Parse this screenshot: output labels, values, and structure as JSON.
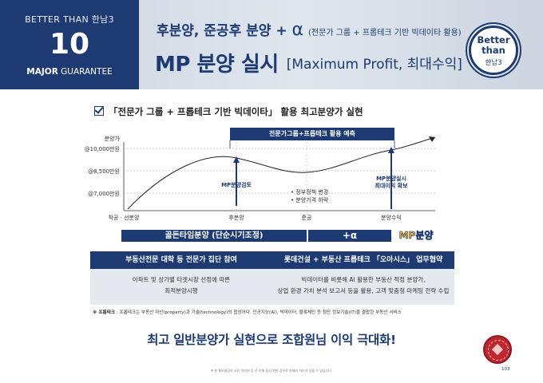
{
  "header": {
    "brand_line1": "BETTER THAN 한남3",
    "brand_number": "10",
    "brand_line3_bold": "MAJOR",
    "brand_line3_rest": " GUARANTEE",
    "subtitle": "후분양, 준공후 분양 + ",
    "subtitle_alpha": "α",
    "subtitle_note": "(전문가 그룹 + 프롭테크 기반 빅데이타 활용)",
    "title": "MP 분양 실시",
    "title_bracket": "[Maximum Profit, 최대수익]",
    "badge_line1": "Better",
    "badge_line2": "than",
    "badge_line3": "한남3"
  },
  "section_title": "「전문가 그룹 + 프롭테크 기반 빅데이타」 활용 최고분양가 실현",
  "chart_data": {
    "type": "line",
    "y_axis_label": "분양가",
    "y_ticks": [
      "@10,000만원",
      "@8,500만원",
      "@7,000만원"
    ],
    "x_ticks": [
      "착공 · 선분양",
      "후분양",
      "준공",
      "분양수익"
    ],
    "banner": "전문가그룹+프롭테크 활용 예측",
    "callouts": [
      "MP분양검토",
      "MP분양실시\n최대이익 확보"
    ],
    "notes": [
      "• 정부정책 변경",
      "• 분양가격 하락"
    ],
    "series": [
      {
        "x": [
          "착공 · 선분양",
          "후분양",
          "준공",
          "분양수익"
        ],
        "values": [
          7000,
          8800,
          8400,
          9600
        ]
      }
    ]
  },
  "timeline": {
    "bar1": "골든타임분양 (단순시기조정)",
    "bar2": "+α",
    "bar3": "MP분양"
  },
  "boxes": [
    {
      "title": "부동산전문 대학 등 전문가 집단 참여",
      "line1": "아파트 및 상가별 타겟시장 선정에 따른",
      "line2": "최적분양시행"
    },
    {
      "title": "롯데건설 + 부동산 프롭테크 「오아시스」 업무협약",
      "line1": "빅데이터를 비롯해 AI 활용한 부동산 적정 분양가,",
      "line2": "상업 환경 가치 분석 보고서 등을 활용, 고객 맞춤형 마케팅 전략 수립"
    }
  ],
  "footnote_label": "※ 프롭테크",
  "footnote_text": " : 프롭테크는 부동산 자산(property)과 기술(technology)의 합성어다. 인공지능(AI), 빅데이터, 블록체인 등 첨단 정보기술(IT)을 결합한 부동산 서비스",
  "slogan": "최고 일반분양가 실현으로 조합원님 이익 극대화!",
  "disclaimer": "※ 본 홍보물상의 사진 이미지 등 은 이해 돕기 위한 것으로 실제와 차이가 있을 수 있습니다.",
  "page_number": "103",
  "colors": {
    "navy": "#1d3a72",
    "gold": "#e9a620",
    "seal_red": "#c0262d"
  }
}
